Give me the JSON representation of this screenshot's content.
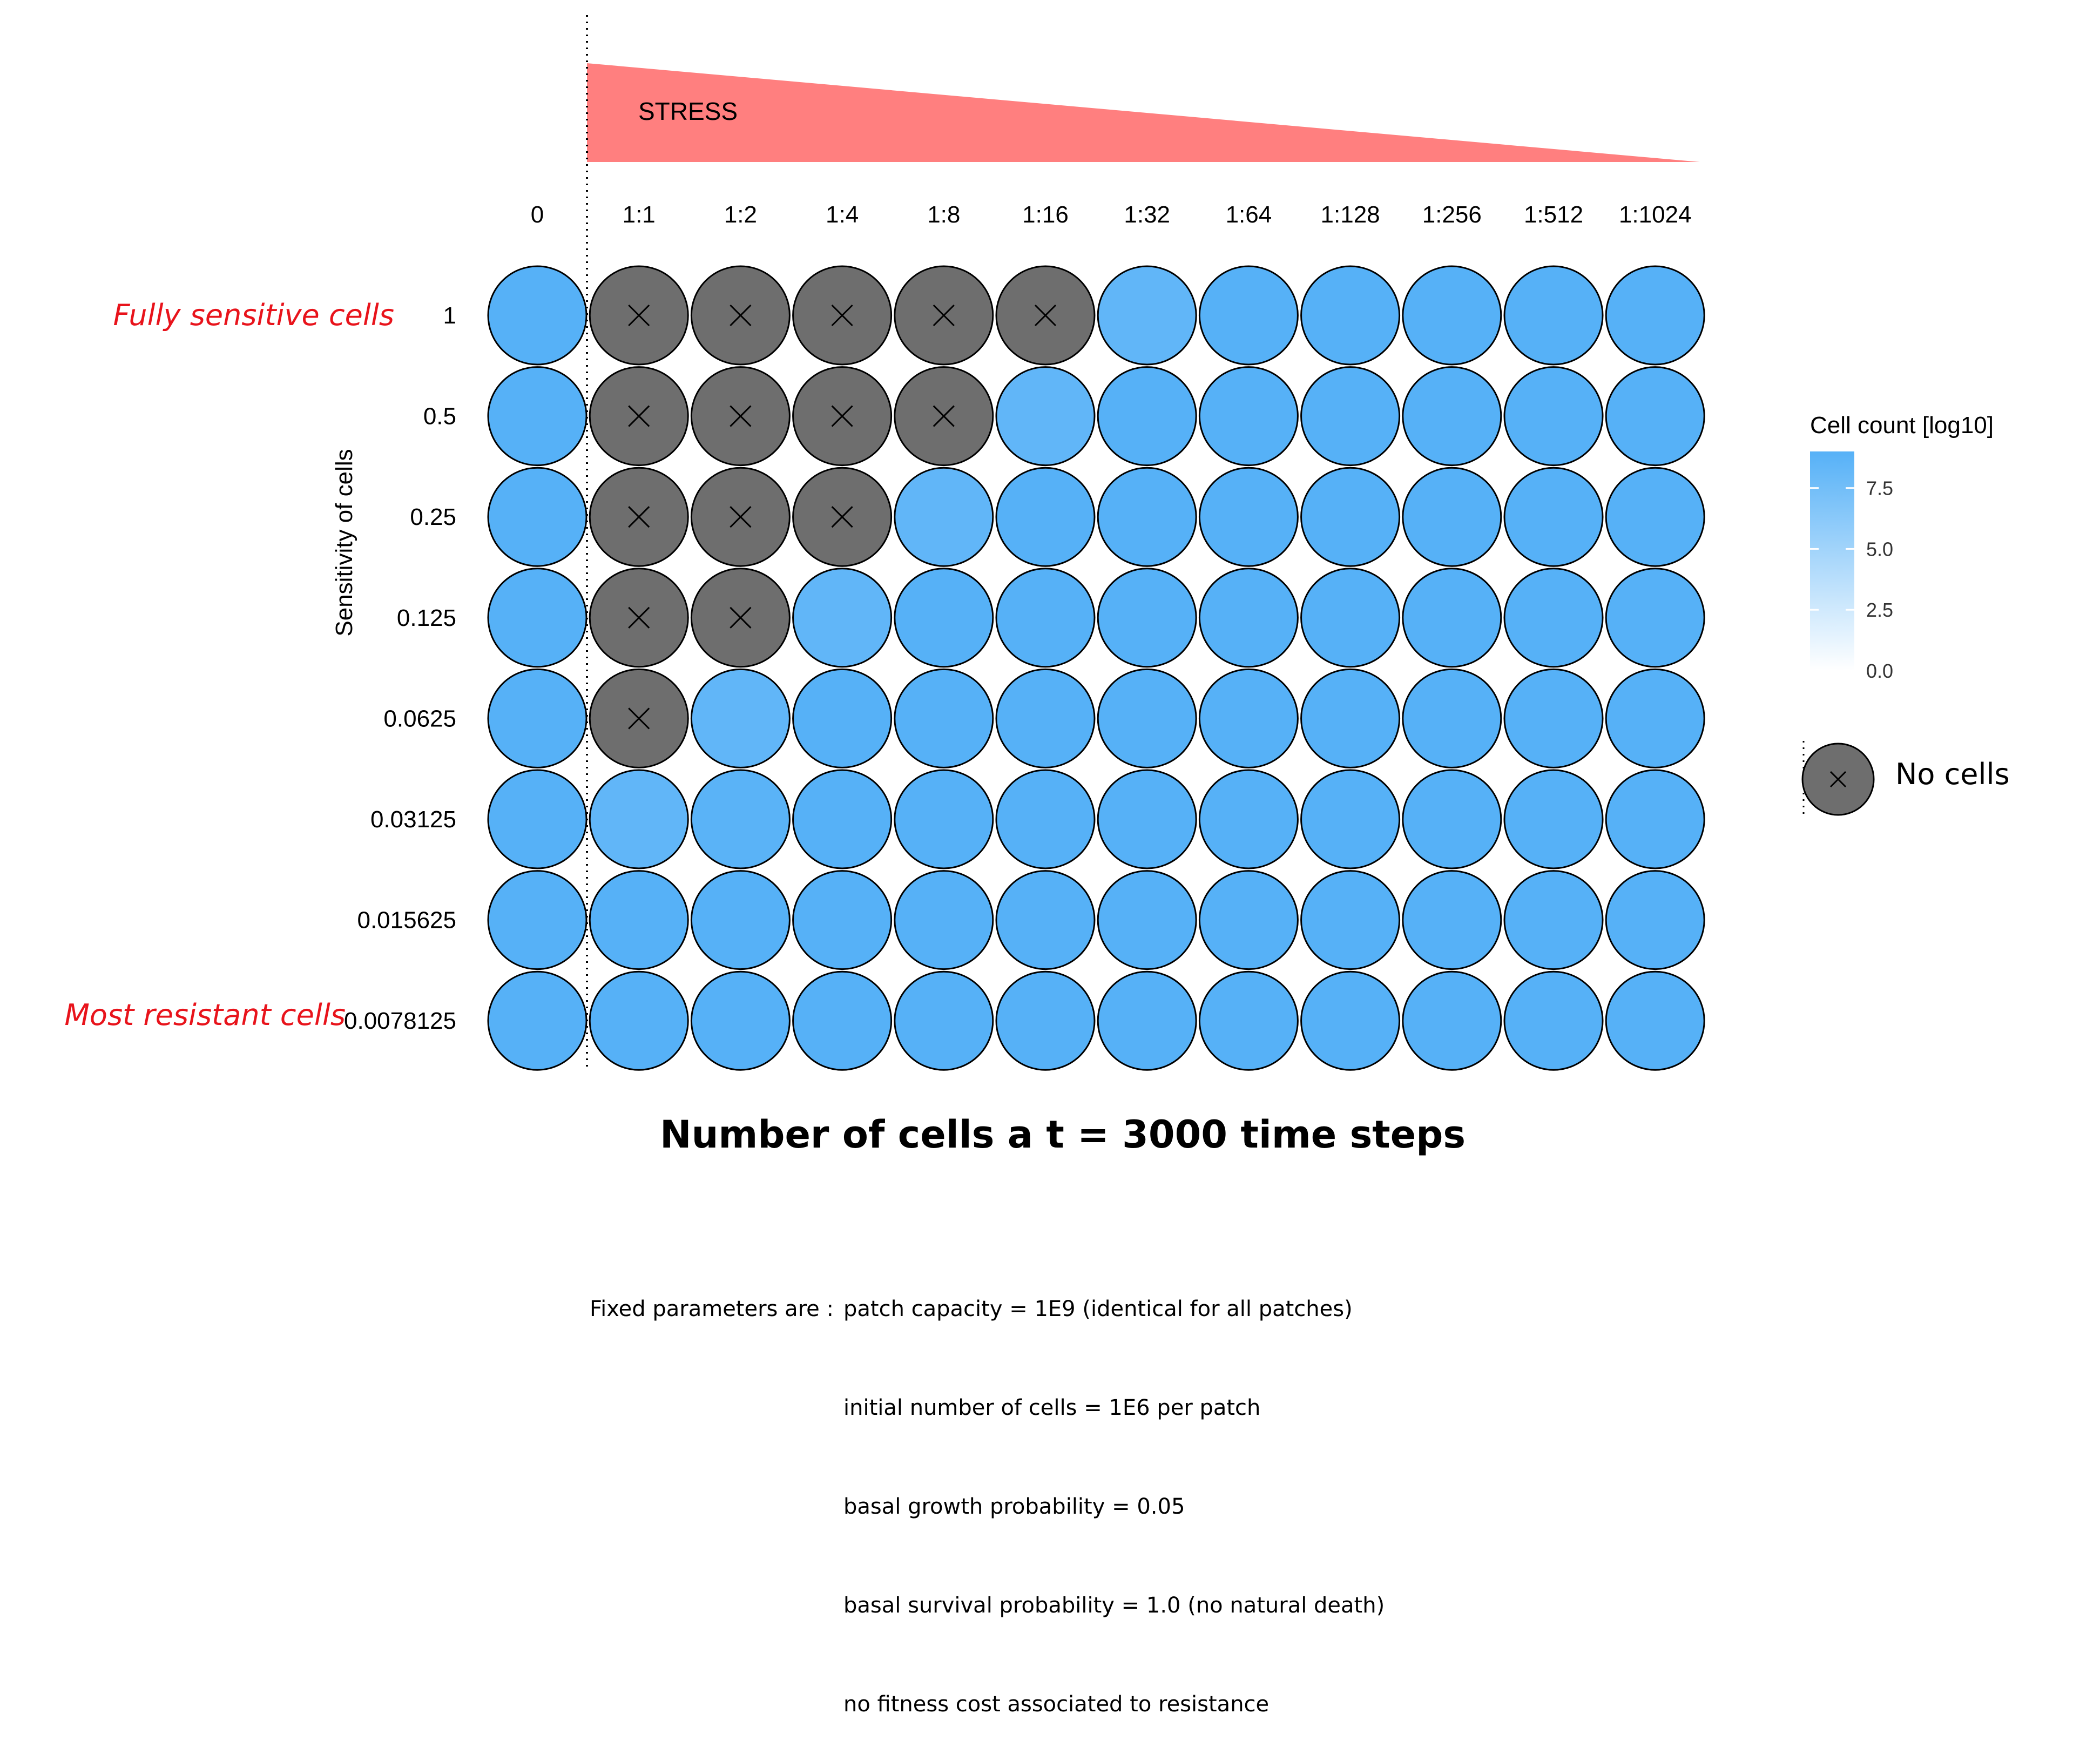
{
  "chart_data": {
    "type": "heatmap",
    "title": "Number of cells a t = 3000 time steps",
    "stress_label": "STRESS",
    "x_categories": [
      "0",
      "1:1",
      "1:2",
      "1:4",
      "1:8",
      "1:16",
      "1:32",
      "1:64",
      "1:128",
      "1:256",
      "1:512",
      "1:1024"
    ],
    "y_categories": [
      "1",
      "0.5",
      "0.25",
      "0.125",
      "0.0625",
      "0.03125",
      "0.015625",
      "0.0078125"
    ],
    "ylabel": "Sensitivity of cells",
    "row_annotations": {
      "top": "Fully sensitive cells",
      "bottom": "Most resistant cells"
    },
    "values": [
      [
        9,
        null,
        null,
        null,
        null,
        null,
        8.4,
        9,
        9,
        9,
        9,
        9
      ],
      [
        9,
        null,
        null,
        null,
        null,
        8.4,
        9,
        9,
        9,
        9,
        9,
        9
      ],
      [
        9,
        null,
        null,
        null,
        8.4,
        9,
        9,
        9,
        9,
        9,
        9,
        9
      ],
      [
        9,
        null,
        null,
        8.4,
        9,
        9,
        9,
        9,
        9,
        9,
        9,
        9
      ],
      [
        9,
        null,
        8.4,
        9,
        9,
        9,
        9,
        9,
        9,
        9,
        9,
        9
      ],
      [
        9,
        8.4,
        8.8,
        9,
        9,
        9,
        9,
        9,
        9,
        9,
        9,
        9
      ],
      [
        9,
        9,
        9,
        9,
        9,
        9,
        9,
        9,
        9,
        9,
        9,
        9
      ],
      [
        9,
        9,
        9,
        9,
        9,
        9,
        9,
        9,
        9,
        9,
        9,
        9
      ]
    ],
    "legend": {
      "title": "Cell count [log10]",
      "ticks": [
        "0.0",
        "2.5",
        "5.0",
        "7.5"
      ],
      "range": [
        0,
        9
      ],
      "low_color": "#ffffff",
      "high_color": "#56b1f7",
      "no_cells_label": "No cells",
      "no_cells_color": "#6e6e6e"
    },
    "colors": {
      "stress": "#ff7f7f",
      "annotation": "#e8131b"
    }
  },
  "parameters": {
    "lead": "Fixed parameters are :",
    "lines": [
      "patch capacity = 1E9 (identical for all patches)",
      "initial number of cells = 1E6 per patch",
      "basal growth probability = 0.05",
      "basal survival probability = 1.0 (no natural death)",
      "no fitness cost associated to resistance"
    ]
  }
}
